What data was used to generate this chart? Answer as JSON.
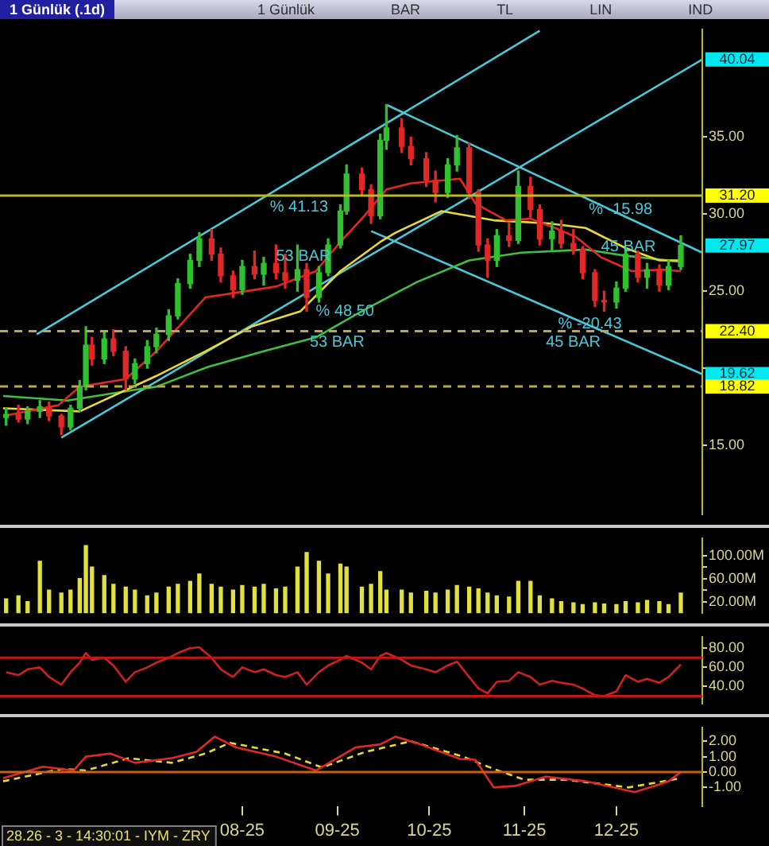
{
  "chart_data": [
    {
      "type": "candlestick",
      "title": "1 Günlük (.1d)",
      "annotations": [
        "1 Günlük",
        "BAR",
        "TL",
        "LIN",
        "IND",
        {
          "text": "% 41.13",
          "x": "2025-08-10",
          "y": 31.2
        },
        {
          "text": "53 BAR",
          "x": "2025-08-12",
          "y": 28.0
        },
        {
          "text": "% 48.50",
          "x": "2025-08-25",
          "y": 24.4
        },
        {
          "text": "53 BAR",
          "x": "2025-08-23",
          "y": 22.4
        },
        {
          "text": "% -15.98",
          "x": "2025-11-22",
          "y": 31.0
        },
        {
          "text": "45 BAR",
          "x": "2025-11-26",
          "y": 28.6
        },
        {
          "text": "% -20.43",
          "x": "2025-11-12",
          "y": 23.6
        },
        {
          "text": "45 BAR",
          "x": "2025-11-08",
          "y": 22.4
        },
        {
          "text": "40.04",
          "x": "2025-12-29",
          "y": 40.04
        },
        {
          "text": "27.97",
          "x": "2025-12-29",
          "y": 27.97
        },
        {
          "text": "19.62",
          "x": "2025-12-29",
          "y": 19.62
        }
      ],
      "x": [
        "2025-05-16",
        "2025-05-20",
        "2025-05-23",
        "2025-05-27",
        "2025-05-30",
        "2025-06-03",
        "2025-06-06",
        "2025-06-09",
        "2025-06-11",
        "2025-06-13",
        "2025-06-17",
        "2025-06-20",
        "2025-06-24",
        "2025-06-27",
        "2025-07-01",
        "2025-07-04",
        "2025-07-08",
        "2025-07-11",
        "2025-07-15",
        "2025-07-18",
        "2025-07-22",
        "2025-07-25",
        "2025-07-29",
        "2025-08-01",
        "2025-08-05",
        "2025-08-08",
        "2025-08-12",
        "2025-08-15",
        "2025-08-19",
        "2025-08-22",
        "2025-08-26",
        "2025-08-29",
        "2025-09-02",
        "2025-09-04",
        "2025-09-09",
        "2025-09-12",
        "2025-09-15",
        "2025-09-17",
        "2025-09-22",
        "2025-09-25",
        "2025-09-30",
        "2025-10-03",
        "2025-10-07",
        "2025-10-10",
        "2025-10-14",
        "2025-10-17",
        "2025-10-20",
        "2025-10-23",
        "2025-10-27",
        "2025-10-30",
        "2025-11-03",
        "2025-11-06",
        "2025-11-10",
        "2025-11-13",
        "2025-11-17",
        "2025-11-20",
        "2025-11-24",
        "2025-11-27",
        "2025-12-01",
        "2025-12-04",
        "2025-12-08",
        "2025-12-11",
        "2025-12-15",
        "2025-12-18",
        "2025-12-22"
      ],
      "ohlc": [
        [
          16.8,
          17.4,
          16.3,
          17.0
        ],
        [
          17.0,
          17.6,
          16.5,
          16.7
        ],
        [
          16.7,
          17.5,
          16.4,
          17.2
        ],
        [
          17.2,
          17.9,
          16.8,
          17.5
        ],
        [
          17.5,
          17.8,
          16.6,
          16.9
        ],
        [
          16.9,
          17.0,
          15.7,
          16.2
        ],
        [
          16.2,
          17.6,
          16.0,
          17.4
        ],
        [
          17.4,
          19.2,
          17.2,
          18.8
        ],
        [
          18.8,
          22.7,
          18.6,
          21.5
        ],
        [
          21.5,
          22.0,
          20.2,
          20.6
        ],
        [
          20.6,
          22.3,
          20.3,
          21.9
        ],
        [
          21.9,
          22.5,
          20.8,
          21.1
        ],
        [
          21.1,
          21.4,
          18.6,
          19.3
        ],
        [
          19.3,
          20.6,
          19.0,
          20.3
        ],
        [
          20.3,
          21.8,
          20.0,
          21.4
        ],
        [
          21.4,
          22.6,
          21.0,
          22.2
        ],
        [
          22.2,
          23.8,
          21.8,
          23.4
        ],
        [
          23.4,
          25.8,
          23.2,
          25.5
        ],
        [
          25.5,
          27.4,
          25.2,
          27.0
        ],
        [
          27.0,
          28.8,
          26.6,
          28.4
        ],
        [
          28.4,
          29.0,
          27.0,
          27.4
        ],
        [
          27.4,
          27.8,
          25.6,
          26.0
        ],
        [
          26.0,
          26.3,
          24.6,
          25.1
        ],
        [
          25.1,
          27.0,
          24.8,
          26.6
        ],
        [
          26.6,
          27.6,
          25.8,
          26.1
        ],
        [
          26.1,
          27.2,
          25.4,
          26.8
        ],
        [
          26.8,
          28.0,
          25.8,
          26.2
        ],
        [
          26.2,
          27.4,
          25.2,
          25.7
        ],
        [
          25.7,
          28.0,
          25.0,
          26.4
        ],
        [
          26.4,
          26.8,
          23.7,
          24.6
        ],
        [
          24.6,
          26.6,
          24.3,
          26.2
        ],
        [
          26.2,
          28.4,
          26.0,
          28.0
        ],
        [
          28.0,
          30.6,
          27.8,
          30.2
        ],
        [
          30.2,
          33.2,
          30.0,
          32.6
        ],
        [
          32.6,
          33.0,
          31.2,
          31.6
        ],
        [
          31.6,
          31.9,
          29.4,
          29.9
        ],
        [
          29.9,
          35.2,
          29.7,
          34.8
        ],
        [
          34.8,
          37.1,
          34.2,
          35.6
        ],
        [
          35.6,
          36.2,
          34.0,
          34.4
        ],
        [
          34.4,
          35.0,
          33.2,
          33.6
        ],
        [
          33.6,
          34.0,
          31.8,
          32.2
        ],
        [
          32.2,
          32.8,
          30.8,
          31.4
        ],
        [
          31.4,
          33.6,
          31.1,
          33.2
        ],
        [
          33.2,
          35.1,
          32.8,
          34.3
        ],
        [
          34.3,
          34.6,
          31.0,
          31.4
        ],
        [
          31.4,
          31.6,
          27.6,
          28.0
        ],
        [
          28.0,
          28.4,
          25.9,
          27.0
        ],
        [
          27.0,
          29.0,
          26.6,
          28.6
        ],
        [
          28.6,
          29.4,
          27.9,
          28.3
        ],
        [
          28.3,
          32.8,
          28.1,
          31.8
        ],
        [
          31.8,
          32.4,
          29.8,
          30.3
        ],
        [
          30.3,
          30.6,
          28.0,
          28.4
        ],
        [
          28.4,
          29.5,
          27.6,
          28.9
        ],
        [
          28.9,
          29.6,
          27.8,
          28.1
        ],
        [
          28.1,
          29.0,
          27.4,
          27.7
        ],
        [
          27.7,
          27.9,
          25.8,
          26.2
        ],
        [
          26.2,
          26.4,
          24.0,
          24.4
        ],
        [
          24.4,
          25.0,
          23.7,
          24.3
        ],
        [
          24.3,
          25.6,
          23.9,
          25.2
        ],
        [
          25.2,
          27.8,
          25.0,
          27.4
        ],
        [
          27.4,
          27.6,
          25.6,
          25.9
        ],
        [
          25.9,
          26.8,
          25.2,
          26.4
        ],
        [
          26.4,
          26.7,
          25.0,
          25.4
        ],
        [
          25.4,
          27.0,
          25.1,
          26.6
        ],
        [
          26.6,
          28.6,
          26.4,
          27.97
        ]
      ],
      "series": [
        {
          "type": "line",
          "color": "#e02828",
          "x": [
            "2025-05-15",
            "2025-06-02",
            "2025-06-09",
            "2025-06-24",
            "2025-07-04",
            "2025-07-20",
            "2025-07-30",
            "2025-08-12",
            "2025-08-25",
            "2025-09-02",
            "2025-09-09",
            "2025-09-17",
            "2025-09-25",
            "2025-10-11",
            "2025-10-16",
            "2025-10-26",
            "2025-11-03",
            "2025-11-11",
            "2025-11-18",
            "2025-11-26",
            "2025-12-06",
            "2025-12-16",
            "2025-12-22"
          ],
          "values": [
            16.9,
            17.6,
            18.8,
            19.3,
            21.1,
            24.6,
            24.9,
            25.3,
            26.3,
            28.2,
            29.7,
            31.6,
            32.0,
            32.3,
            30.7,
            29.6,
            29.7,
            29.1,
            28.5,
            27.2,
            26.3,
            26.4,
            26.3
          ]
        },
        {
          "type": "line",
          "color": "#e8d838",
          "x": [
            "2025-05-15",
            "2025-06-09",
            "2025-07-04",
            "2025-07-20",
            "2025-08-04",
            "2025-08-20",
            "2025-09-02",
            "2025-09-15",
            "2025-09-20",
            "2025-10-05",
            "2025-10-22",
            "2025-11-09",
            "2025-11-21",
            "2025-12-04",
            "2025-12-15",
            "2025-12-22"
          ],
          "values": [
            17.4,
            17.2,
            19.5,
            21.1,
            22.7,
            23.7,
            26.3,
            28.2,
            28.8,
            30.2,
            29.6,
            29.4,
            29.1,
            27.8,
            27.0,
            27.0
          ]
        },
        {
          "type": "line",
          "color": "#40c040",
          "x": [
            "2025-05-15",
            "2025-06-05",
            "2025-06-27",
            "2025-07-04",
            "2025-07-21",
            "2025-08-08",
            "2025-08-25",
            "2025-09-09",
            "2025-09-27",
            "2025-10-14",
            "2025-10-31",
            "2025-11-21",
            "2025-12-04",
            "2025-12-22"
          ],
          "values": [
            18.2,
            17.9,
            18.6,
            18.8,
            20.1,
            21.1,
            22.0,
            23.7,
            25.6,
            27.0,
            27.5,
            27.7,
            27.3,
            26.9
          ]
        },
        {
          "type": "line",
          "color": "#48c8d8",
          "x": [
            "2025-05-26",
            "2025-11-06"
          ],
          "values": [
            22.2,
            41.9
          ]
        },
        {
          "type": "line",
          "color": "#48c8d8",
          "x": [
            "2025-06-03",
            "2025-12-29"
          ],
          "values": [
            15.5,
            40.04
          ]
        },
        {
          "type": "line",
          "color": "#48c8d8",
          "x": [
            "2025-09-17",
            "2025-12-29"
          ],
          "values": [
            37.1,
            27.5
          ]
        },
        {
          "type": "line",
          "color": "#48c8d8",
          "x": [
            "2025-09-12",
            "2025-12-29"
          ],
          "values": [
            28.9,
            19.62
          ]
        }
      ],
      "ref_lines": [
        {
          "axis": "y",
          "value": 31.2,
          "label": "31.20",
          "color": "#b8b828"
        },
        {
          "axis": "y",
          "value": 22.4,
          "label": "22.40",
          "color": "#b8a848",
          "line_style": "dashed"
        },
        {
          "axis": "y",
          "value": 18.82,
          "label": "18.82",
          "color": "#b8a848",
          "line_style": "dashed"
        }
      ],
      "xlim": [
        "2025-05-14",
        "2025-12-29"
      ],
      "ylim": [
        10.5,
        42
      ],
      "yticks": [
        {
          "value": 15,
          "label": "15.00"
        },
        {
          "value": 20,
          "label": null
        },
        {
          "value": 25,
          "label": "25.00"
        },
        {
          "value": 30,
          "label": "30.00"
        },
        {
          "value": 35,
          "label": "35.00"
        }
      ],
      "tick_labels": "y"
    },
    {
      "type": "bar",
      "color": "#e0e040",
      "x": [
        "2025-05-16",
        "2025-05-20",
        "2025-05-23",
        "2025-05-27",
        "2025-05-30",
        "2025-06-03",
        "2025-06-06",
        "2025-06-09",
        "2025-06-11",
        "2025-06-13",
        "2025-06-17",
        "2025-06-20",
        "2025-06-24",
        "2025-06-27",
        "2025-07-01",
        "2025-07-04",
        "2025-07-08",
        "2025-07-11",
        "2025-07-15",
        "2025-07-18",
        "2025-07-22",
        "2025-07-25",
        "2025-07-29",
        "2025-08-01",
        "2025-08-05",
        "2025-08-08",
        "2025-08-12",
        "2025-08-15",
        "2025-08-19",
        "2025-08-22",
        "2025-08-26",
        "2025-08-29",
        "2025-09-02",
        "2025-09-04",
        "2025-09-09",
        "2025-09-12",
        "2025-09-15",
        "2025-09-17",
        "2025-09-22",
        "2025-09-25",
        "2025-09-30",
        "2025-10-03",
        "2025-10-07",
        "2025-10-10",
        "2025-10-14",
        "2025-10-17",
        "2025-10-20",
        "2025-10-23",
        "2025-10-27",
        "2025-10-30",
        "2025-11-03",
        "2025-11-06",
        "2025-11-10",
        "2025-11-13",
        "2025-11-17",
        "2025-11-20",
        "2025-11-24",
        "2025-11-27",
        "2025-12-01",
        "2025-12-04",
        "2025-12-08",
        "2025-12-11",
        "2025-12-15",
        "2025-12-18",
        "2025-12-22"
      ],
      "values": [
        25,
        30,
        20,
        90,
        40,
        35,
        40,
        60,
        117,
        80,
        65,
        50,
        45,
        40,
        30,
        35,
        45,
        50,
        55,
        68,
        50,
        45,
        40,
        48,
        45,
        50,
        42,
        45,
        80,
        105,
        90,
        68,
        85,
        80,
        45,
        50,
        72,
        40,
        40,
        35,
        38,
        35,
        40,
        48,
        45,
        42,
        35,
        30,
        28,
        55,
        55,
        30,
        25,
        20,
        18,
        15,
        18,
        16,
        15,
        20,
        18,
        22,
        20,
        15,
        35
      ],
      "xlim": [
        "2025-05-14",
        "2025-12-29"
      ],
      "ylim": [
        0,
        130
      ],
      "yticks": [
        {
          "value": 20,
          "label": "20.00M"
        },
        {
          "value": 40,
          "label": null
        },
        {
          "value": 60,
          "label": "60.00M"
        },
        {
          "value": 80,
          "label": null
        },
        {
          "value": 100,
          "label": "100.00M"
        }
      ],
      "tick_labels": "y"
    },
    {
      "type": "line",
      "color": "#d02020",
      "x": [
        "2025-05-16",
        "2025-05-20",
        "2025-05-23",
        "2025-05-27",
        "2025-05-30",
        "2025-06-03",
        "2025-06-06",
        "2025-06-09",
        "2025-06-11",
        "2025-06-13",
        "2025-06-17",
        "2025-06-20",
        "2025-06-24",
        "2025-06-27",
        "2025-07-01",
        "2025-07-04",
        "2025-07-08",
        "2025-07-11",
        "2025-07-15",
        "2025-07-18",
        "2025-07-22",
        "2025-07-25",
        "2025-07-29",
        "2025-08-01",
        "2025-08-05",
        "2025-08-08",
        "2025-08-12",
        "2025-08-15",
        "2025-08-19",
        "2025-08-22",
        "2025-08-26",
        "2025-08-29",
        "2025-09-02",
        "2025-09-04",
        "2025-09-09",
        "2025-09-12",
        "2025-09-15",
        "2025-09-17",
        "2025-09-22",
        "2025-09-25",
        "2025-09-30",
        "2025-10-03",
        "2025-10-07",
        "2025-10-10",
        "2025-10-14",
        "2025-10-17",
        "2025-10-20",
        "2025-10-23",
        "2025-10-27",
        "2025-10-30",
        "2025-11-03",
        "2025-11-06",
        "2025-11-10",
        "2025-11-13",
        "2025-11-17",
        "2025-11-20",
        "2025-11-24",
        "2025-11-27",
        "2025-12-01",
        "2025-12-04",
        "2025-12-08",
        "2025-12-11",
        "2025-12-15",
        "2025-12-18",
        "2025-12-22"
      ],
      "values": [
        55,
        52,
        58,
        60,
        50,
        42,
        55,
        65,
        75,
        68,
        70,
        62,
        45,
        55,
        60,
        65,
        70,
        75,
        80,
        81,
        70,
        58,
        50,
        60,
        55,
        58,
        52,
        50,
        55,
        42,
        55,
        62,
        68,
        72,
        65,
        58,
        72,
        75,
        68,
        62,
        58,
        55,
        62,
        66,
        50,
        38,
        33,
        45,
        46,
        55,
        50,
        42,
        46,
        44,
        42,
        38,
        31,
        30,
        35,
        52,
        45,
        48,
        44,
        50,
        63
      ],
      "ref_lines": [
        {
          "axis": "y",
          "value": 70,
          "color": "#c01818"
        },
        {
          "axis": "y",
          "value": 30,
          "color": "#c01818"
        }
      ],
      "xlim": [
        "2025-05-14",
        "2025-12-29"
      ],
      "ylim": [
        22,
        92
      ],
      "yticks": [
        {
          "value": 40,
          "label": "40.00"
        },
        {
          "value": 60,
          "label": "60.00"
        },
        {
          "value": 80,
          "label": "80.00"
        }
      ],
      "tick_labels": "y"
    },
    {
      "type": "line",
      "annotations": [
        "28.26 - 3 - 14:30:01 - IYM - ZRY"
      ],
      "series": [
        {
          "color": "#e02828",
          "x": [
            "2025-05-15",
            "2025-05-28",
            "2025-06-07",
            "2025-06-11",
            "2025-06-19",
            "2025-06-27",
            "2025-07-09",
            "2025-07-17",
            "2025-07-23",
            "2025-07-30",
            "2025-08-12",
            "2025-08-25",
            "2025-09-07",
            "2025-09-15",
            "2025-09-20",
            "2025-09-28",
            "2025-10-11",
            "2025-10-16",
            "2025-10-22",
            "2025-10-29",
            "2025-11-08",
            "2025-11-21",
            "2025-12-07",
            "2025-12-15",
            "2025-12-18",
            "2025-12-22"
          ],
          "values": [
            -0.4,
            0.35,
            0.1,
            1.0,
            1.2,
            0.6,
            0.9,
            1.3,
            2.3,
            1.6,
            1.0,
            0.1,
            1.6,
            1.8,
            2.3,
            1.8,
            0.85,
            0.8,
            -1.0,
            -0.9,
            -0.3,
            -0.6,
            -1.3,
            -0.8,
            -0.6,
            0.0
          ]
        },
        {
          "color": "#e8d838",
          "line_style": "dashed",
          "x": [
            "2025-05-15",
            "2025-06-03",
            "2025-06-11",
            "2025-06-25",
            "2025-07-09",
            "2025-07-20",
            "2025-07-28",
            "2025-08-15",
            "2025-08-27",
            "2025-09-10",
            "2025-09-25",
            "2025-10-12",
            "2025-10-22",
            "2025-11-01",
            "2025-11-15",
            "2025-12-05",
            "2025-12-22"
          ],
          "values": [
            -0.6,
            0.2,
            0.1,
            0.9,
            0.6,
            1.2,
            1.9,
            1.2,
            0.3,
            1.3,
            2.0,
            1.0,
            0.2,
            -0.5,
            -0.5,
            -1.0,
            -0.4
          ]
        }
      ],
      "ref_lines": [
        {
          "axis": "y",
          "value": 0,
          "color": "#c86018"
        }
      ],
      "xlim": [
        "2025-05-14",
        "2025-12-29"
      ],
      "ylim": [
        -2.2,
        2.9
      ],
      "xticks": [
        {
          "value": "2025-08-01",
          "label": "08-25"
        },
        {
          "value": "2025-09-01",
          "label": "09-25"
        },
        {
          "value": "2025-10-01",
          "label": "10-25"
        },
        {
          "value": "2025-11-01",
          "label": "11-25"
        },
        {
          "value": "2025-12-01",
          "label": "12-25"
        }
      ],
      "yticks": [
        {
          "value": -1,
          "label": "-1.00"
        },
        {
          "value": 0,
          "label": "0.00"
        },
        {
          "value": 1,
          "label": "1.00"
        },
        {
          "value": 2,
          "label": "2.00"
        }
      ]
    }
  ]
}
